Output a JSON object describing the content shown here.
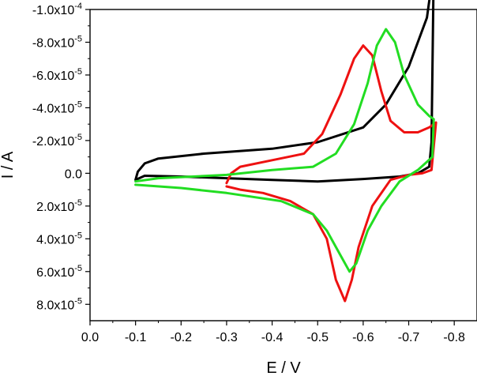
{
  "chart_data": {
    "type": "line",
    "title": "",
    "xlabel": "E / V",
    "ylabel": "I / A",
    "xlim": [
      0.0,
      -0.85
    ],
    "ylim": [
      9e-05,
      -0.0001
    ],
    "x_ticks": [
      {
        "v": 0.0,
        "label": "0.0"
      },
      {
        "v": -0.1,
        "label": "-0.1"
      },
      {
        "v": -0.2,
        "label": "-0.2"
      },
      {
        "v": -0.3,
        "label": "-0.3"
      },
      {
        "v": -0.4,
        "label": "-0.4"
      },
      {
        "v": -0.5,
        "label": "-0.5"
      },
      {
        "v": -0.6,
        "label": "-0.6"
      },
      {
        "v": -0.7,
        "label": "-0.7"
      },
      {
        "v": -0.8,
        "label": "-0.8"
      }
    ],
    "y_ticks": [
      {
        "v": -0.0001,
        "mant": "-1.0x10",
        "exp": "-4"
      },
      {
        "v": -8e-05,
        "mant": "-8.0x10",
        "exp": "-5"
      },
      {
        "v": -6e-05,
        "mant": "-6.0x10",
        "exp": "-5"
      },
      {
        "v": -4e-05,
        "mant": "-4.0x10",
        "exp": "-5"
      },
      {
        "v": -2e-05,
        "mant": "-2.0x10",
        "exp": "-5"
      },
      {
        "v": 0.0,
        "mant": "0.0",
        "exp": ""
      },
      {
        "v": 2e-05,
        "mant": "2.0x10",
        "exp": "-5"
      },
      {
        "v": 4e-05,
        "mant": "4.0x10",
        "exp": "-5"
      },
      {
        "v": 6e-05,
        "mant": "6.0x10",
        "exp": "-5"
      },
      {
        "v": 8e-05,
        "mant": "8.0x10",
        "exp": "-5"
      }
    ],
    "grid": false,
    "series": [
      {
        "color": "#000000",
        "points": [
          [
            -0.1,
            4e-06
          ],
          [
            -0.105,
            -1e-06
          ],
          [
            -0.12,
            -6e-06
          ],
          [
            -0.15,
            -9e-06
          ],
          [
            -0.25,
            -1.2e-05
          ],
          [
            -0.4,
            -1.5e-05
          ],
          [
            -0.5,
            -1.9e-05
          ],
          [
            -0.6,
            -2.8e-05
          ],
          [
            -0.65,
            -4.2e-05
          ],
          [
            -0.7,
            -6.5e-05
          ],
          [
            -0.74,
            -9.5e-05
          ],
          [
            -0.755,
            -0.000125
          ],
          [
            -0.75,
            -1.9e-05
          ],
          [
            -0.745,
            -4e-06
          ],
          [
            -0.72,
            0.0
          ],
          [
            -0.68,
            2e-06
          ],
          [
            -0.6,
            3.5e-06
          ],
          [
            -0.5,
            5e-06
          ],
          [
            -0.4,
            4e-06
          ],
          [
            -0.3,
            3e-06
          ],
          [
            -0.2,
            2e-06
          ],
          [
            -0.12,
            1.5e-06
          ],
          [
            -0.1,
            4e-06
          ]
        ]
      },
      {
        "color": "#ee1111",
        "points": [
          [
            -0.3,
            6e-06
          ],
          [
            -0.31,
            0.0
          ],
          [
            -0.33,
            -4e-06
          ],
          [
            -0.4,
            -8e-06
          ],
          [
            -0.47,
            -1.2e-05
          ],
          [
            -0.51,
            -2.4e-05
          ],
          [
            -0.55,
            -4.8e-05
          ],
          [
            -0.58,
            -7e-05
          ],
          [
            -0.6,
            -7.8e-05
          ],
          [
            -0.62,
            -7.2e-05
          ],
          [
            -0.64,
            -5e-05
          ],
          [
            -0.66,
            -3.2e-05
          ],
          [
            -0.69,
            -2.5e-05
          ],
          [
            -0.72,
            -2.5e-05
          ],
          [
            -0.745,
            -2.8e-05
          ],
          [
            -0.76,
            -3.1e-05
          ],
          [
            -0.75,
            -2e-06
          ],
          [
            -0.73,
            0.0
          ],
          [
            -0.7,
            1e-06
          ],
          [
            -0.66,
            4e-06
          ],
          [
            -0.62,
            2e-05
          ],
          [
            -0.59,
            4.5e-05
          ],
          [
            -0.575,
            6.5e-05
          ],
          [
            -0.56,
            7.8e-05
          ],
          [
            -0.54,
            6.5e-05
          ],
          [
            -0.52,
            4e-05
          ],
          [
            -0.49,
            2.5e-05
          ],
          [
            -0.44,
            1.7e-05
          ],
          [
            -0.38,
            1.2e-05
          ],
          [
            -0.33,
            1e-05
          ],
          [
            -0.3,
            8e-06
          ]
        ]
      },
      {
        "color": "#22dd22",
        "points": [
          [
            -0.1,
            5e-06
          ],
          [
            -0.15,
            3e-06
          ],
          [
            -0.3,
            1e-06
          ],
          [
            -0.4,
            -2e-06
          ],
          [
            -0.49,
            -4e-06
          ],
          [
            -0.54,
            -1.2e-05
          ],
          [
            -0.58,
            -3e-05
          ],
          [
            -0.61,
            -5.5e-05
          ],
          [
            -0.63,
            -7.8e-05
          ],
          [
            -0.65,
            -8.8e-05
          ],
          [
            -0.67,
            -8e-05
          ],
          [
            -0.69,
            -6e-05
          ],
          [
            -0.72,
            -4.2e-05
          ],
          [
            -0.745,
            -3.5e-05
          ],
          [
            -0.755,
            -3.3e-05
          ],
          [
            -0.752,
            -1e-05
          ],
          [
            -0.72,
            -2e-06
          ],
          [
            -0.68,
            5e-06
          ],
          [
            -0.64,
            2e-05
          ],
          [
            -0.61,
            3.5e-05
          ],
          [
            -0.585,
            5.5e-05
          ],
          [
            -0.57,
            6e-05
          ],
          [
            -0.55,
            5e-05
          ],
          [
            -0.52,
            3.5e-05
          ],
          [
            -0.49,
            2.5e-05
          ],
          [
            -0.42,
            1.7e-05
          ],
          [
            -0.3,
            1.2e-05
          ],
          [
            -0.2,
            9e-06
          ],
          [
            -0.1,
            7e-06
          ]
        ]
      }
    ]
  }
}
